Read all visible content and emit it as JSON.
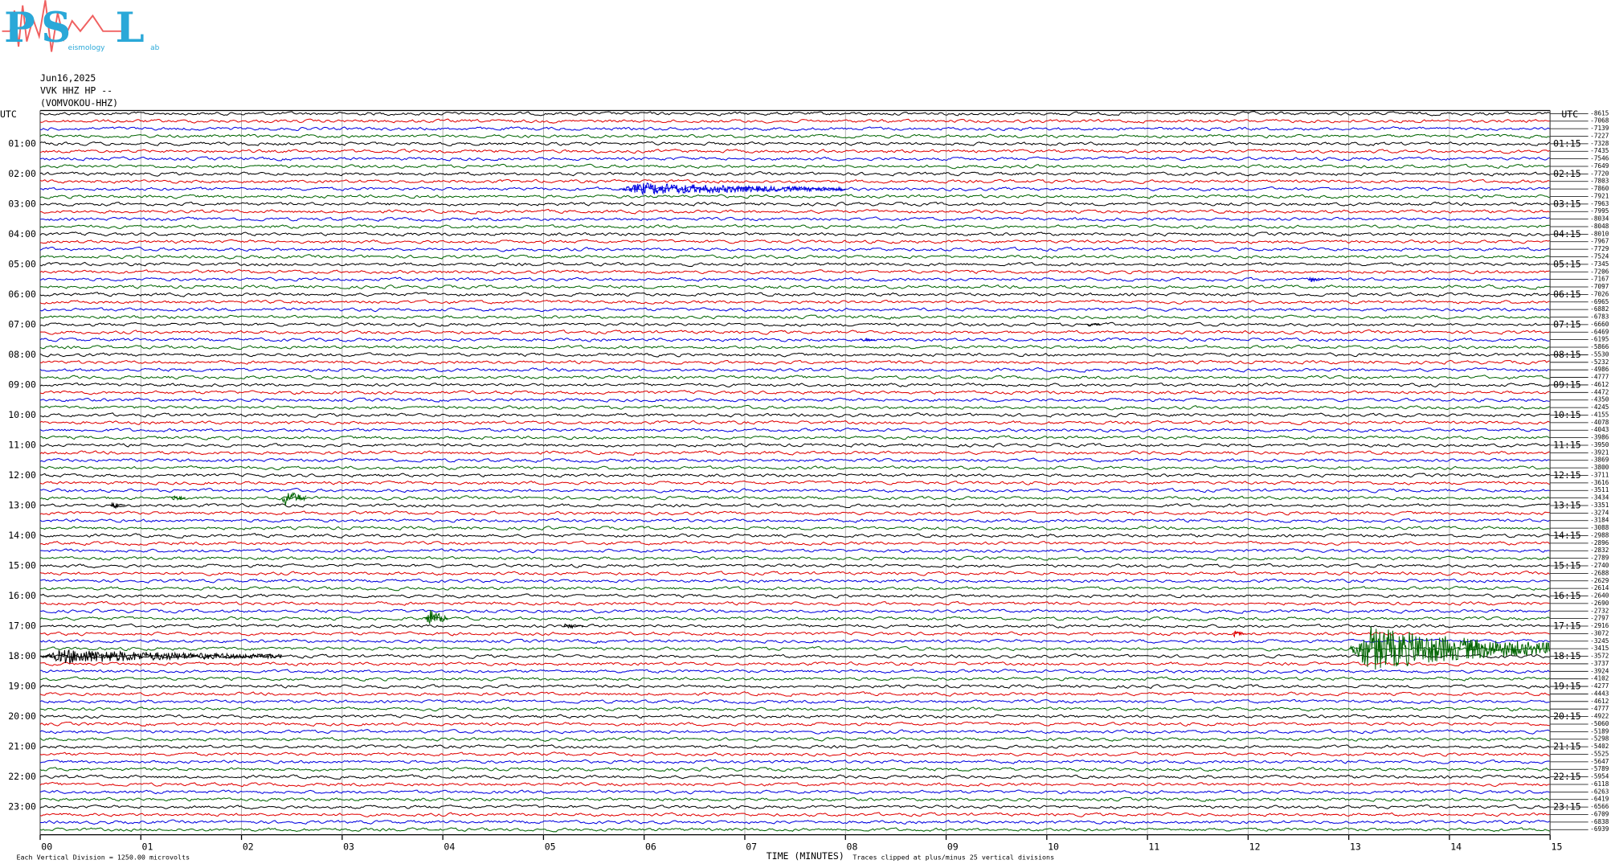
{
  "logo": {
    "letters": [
      "P",
      "S",
      "L"
    ],
    "fragments": [
      "eismology",
      "ab"
    ]
  },
  "header": {
    "date": "Jun16,2025",
    "station": "VVK HHZ HP --",
    "site": "(VOMVOKOU-HHZ)"
  },
  "utc_left": "UTC",
  "utc_right": "UTC",
  "trace_colors": [
    "#000000",
    "#e00000",
    "#0000e0",
    "#006400"
  ],
  "left_labels": [
    "01:00",
    "02:00",
    "03:00",
    "04:00",
    "05:00",
    "06:00",
    "07:00",
    "08:00",
    "09:00",
    "10:00",
    "11:00",
    "12:00",
    "13:00",
    "14:00",
    "15:00",
    "16:00",
    "17:00",
    "18:00",
    "19:00",
    "20:00",
    "21:00",
    "22:00",
    "23:00"
  ],
  "right_labels": [
    "01:15",
    "02:15",
    "03:15",
    "04:15",
    "05:15",
    "06:15",
    "07:15",
    "08:15",
    "09:15",
    "10:15",
    "11:15",
    "12:15",
    "13:15",
    "14:15",
    "15:15",
    "16:15",
    "17:15",
    "18:15",
    "19:15",
    "20:15",
    "21:15",
    "22:15",
    "23:15"
  ],
  "offsets": [
    "-8615",
    "-7068",
    "-7139",
    "-7227",
    "-7328",
    "-7435",
    "-7546",
    "-7649",
    "-7720",
    "-7803",
    "-7860",
    "-7921",
    "-7963",
    "-7995",
    "-8034",
    "-8048",
    "-8010",
    "-7967",
    "-7729",
    "-7524",
    "-7345",
    "-7206",
    "-7167",
    "-7097",
    "-7026",
    "-6965",
    "-6882",
    "-6783",
    "-6660",
    "-6469",
    "-6195",
    "-5866",
    "-5530",
    "-5232",
    "-4986",
    "-4777",
    "-4612",
    "-4472",
    "-4350",
    "-4245",
    "-4155",
    "-4078",
    "-4043",
    "-3986",
    "-3950",
    "-3921",
    "-3869",
    "-3800",
    "-3711",
    "-3616",
    "-3511",
    "-3434",
    "-3351",
    "-3274",
    "-3184",
    "-3088",
    "-2988",
    "-2896",
    "-2832",
    "-2789",
    "-2740",
    "-2688",
    "-2629",
    "-2614",
    "-2640",
    "-2690",
    "-2732",
    "-2797",
    "-2916",
    "-3072",
    "-3245",
    "-3415",
    "-3572",
    "-3737",
    "-3924",
    "-4102",
    "-4277",
    "-4443",
    "-4612",
    "-4777",
    "-4922",
    "-5060",
    "-5189",
    "-5298",
    "-5402",
    "-5525",
    "-5647",
    "-5789",
    "-5954",
    "-6118",
    "-6263",
    "-6419",
    "-6566",
    "-6709",
    "-6838",
    "-6939"
  ],
  "x_ticks": [
    "00",
    "01",
    "02",
    "03",
    "04",
    "05",
    "06",
    "07",
    "08",
    "09",
    "10",
    "11",
    "12",
    "13",
    "14",
    "15"
  ],
  "events": [
    {
      "trace": 10,
      "start": 5.75,
      "end": 8.0,
      "amplitude": 6
    },
    {
      "trace": 22,
      "start": 12.6,
      "end": 12.75,
      "amplitude": 3
    },
    {
      "trace": 28,
      "start": 10.4,
      "end": 10.55,
      "amplitude": 2
    },
    {
      "trace": 30,
      "start": 8.15,
      "end": 8.3,
      "amplitude": 2
    },
    {
      "trace": 51,
      "start": 1.3,
      "end": 1.45,
      "amplitude": 3
    },
    {
      "trace": 51,
      "start": 2.4,
      "end": 2.65,
      "amplitude": 9
    },
    {
      "trace": 52,
      "start": 0.7,
      "end": 0.85,
      "amplitude": 4
    },
    {
      "trace": 67,
      "start": 3.82,
      "end": 4.05,
      "amplitude": 11
    },
    {
      "trace": 68,
      "start": 5.2,
      "end": 5.4,
      "amplitude": 3
    },
    {
      "trace": 69,
      "start": 11.85,
      "end": 11.98,
      "amplitude": 3
    },
    {
      "trace": 71,
      "start": 13.0,
      "end": 15.0,
      "amplitude": 22
    },
    {
      "trace": 72,
      "start": 0.0,
      "end": 2.4,
      "amplitude": 7
    }
  ],
  "footer": {
    "scale": "Each Vertical Division = 1250.00 microvolts",
    "axis": "TIME (MINUTES)",
    "clip": "Traces clipped at plus/minus 25 vertical divisions"
  }
}
